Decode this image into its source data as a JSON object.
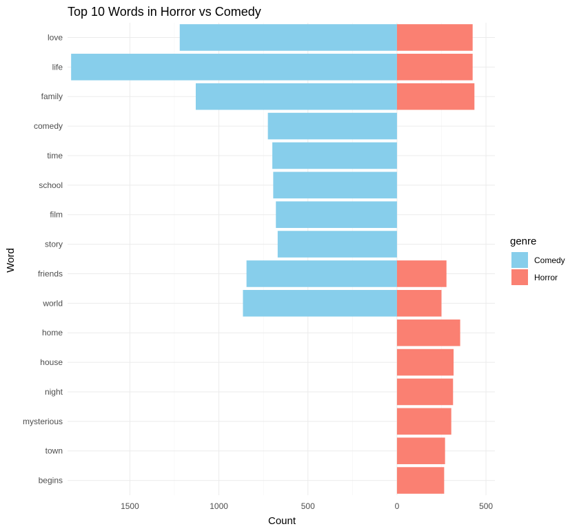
{
  "chart_data": {
    "type": "bar",
    "orientation": "horizontal-diverging",
    "title": "Top 10 Words in Horror vs Comedy",
    "xlabel": "Count",
    "ylabel": "Word",
    "categories": [
      "love",
      "life",
      "family",
      "comedy",
      "time",
      "school",
      "film",
      "story",
      "friends",
      "world",
      "home",
      "house",
      "night",
      "mysterious",
      "town",
      "begins"
    ],
    "series": [
      {
        "name": "Comedy",
        "color": "#87CEEB",
        "direction": "left",
        "values": [
          1220,
          1830,
          1130,
          725,
          700,
          695,
          680,
          670,
          845,
          865,
          null,
          null,
          null,
          null,
          null,
          null
        ]
      },
      {
        "name": "Horror",
        "color": "#FA8072",
        "direction": "right",
        "values": [
          425,
          425,
          435,
          null,
          null,
          null,
          null,
          null,
          278,
          250,
          355,
          318,
          315,
          305,
          270,
          265
        ]
      }
    ],
    "xticks": [
      {
        "value": -1500,
        "label": "1500"
      },
      {
        "value": -1000,
        "label": "1000"
      },
      {
        "value": -500,
        "label": "500"
      },
      {
        "value": 0,
        "label": "0"
      },
      {
        "value": 500,
        "label": "500"
      }
    ],
    "xlim": [
      -1850,
      550
    ],
    "grid": true,
    "legend": {
      "title": "genre",
      "placement": "right",
      "entries": [
        "Comedy",
        "Horror"
      ]
    }
  }
}
